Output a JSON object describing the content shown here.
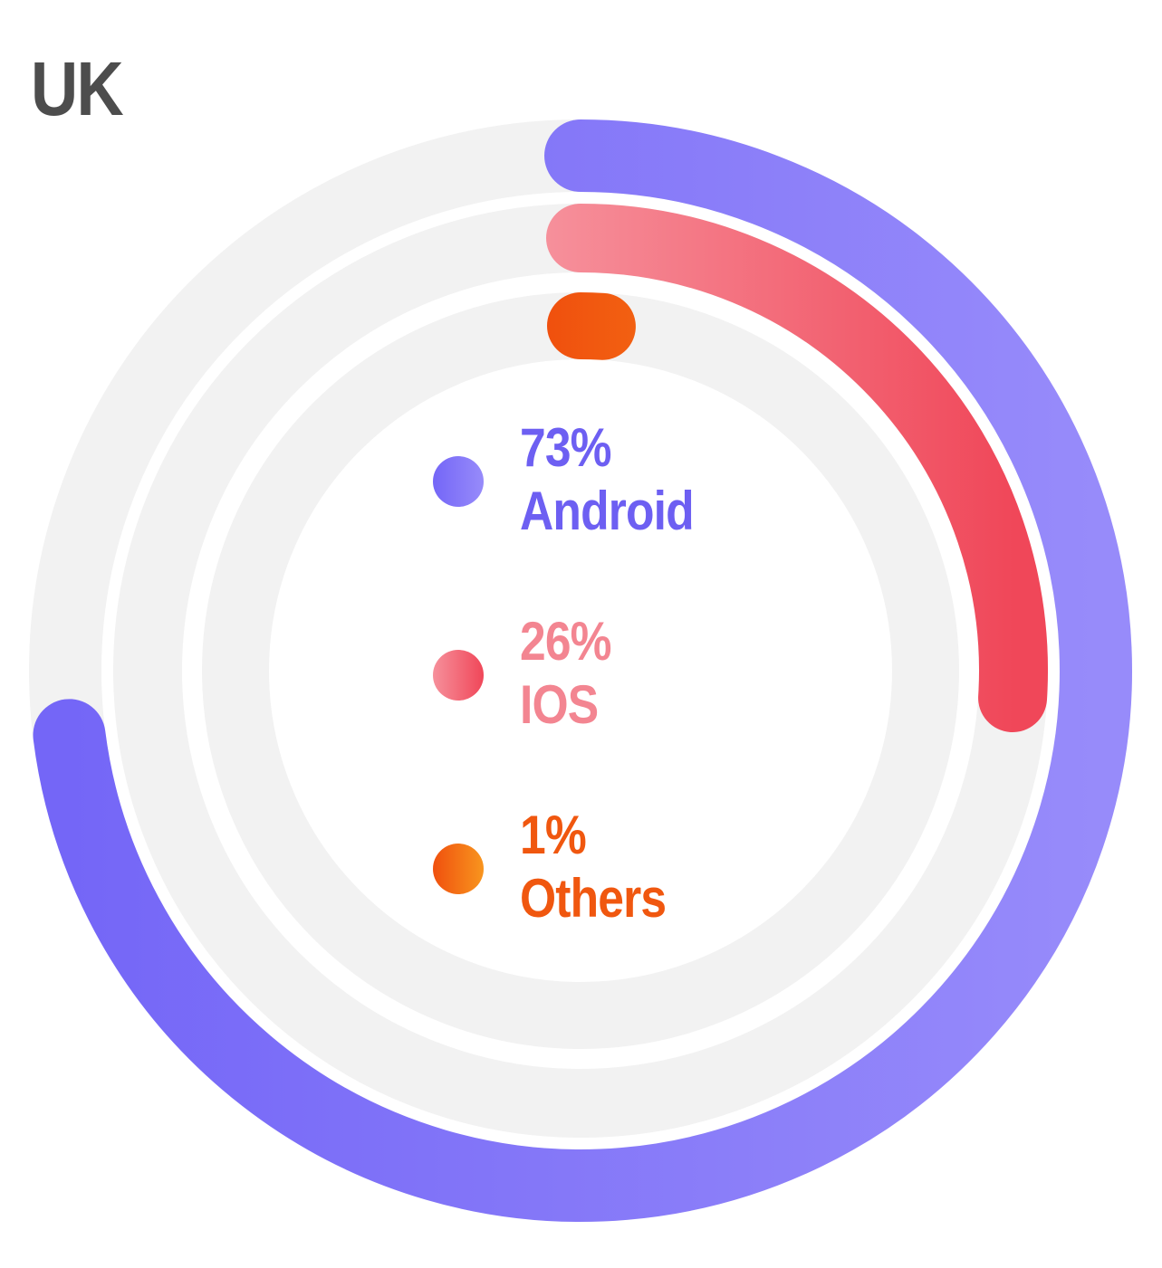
{
  "chart_data": {
    "type": "ring",
    "title": "UK",
    "unit": "%",
    "max": 100,
    "track_color": "#f2f2f2",
    "series": [
      {
        "name": "Android",
        "value": 73,
        "value_label": "73%",
        "gradient": [
          "#7466f7",
          "#978bfa"
        ],
        "text_color": "#6d5ff2"
      },
      {
        "name": "IOS",
        "value": 26,
        "value_label": "26%",
        "gradient": [
          "#f6909b",
          "#f04759"
        ],
        "text_color": "#f38591"
      },
      {
        "name": "Others",
        "value": 1,
        "value_label": "1%",
        "gradient": [
          "#f0500e",
          "#f8951e"
        ],
        "text_color": "#f0570f"
      }
    ]
  }
}
